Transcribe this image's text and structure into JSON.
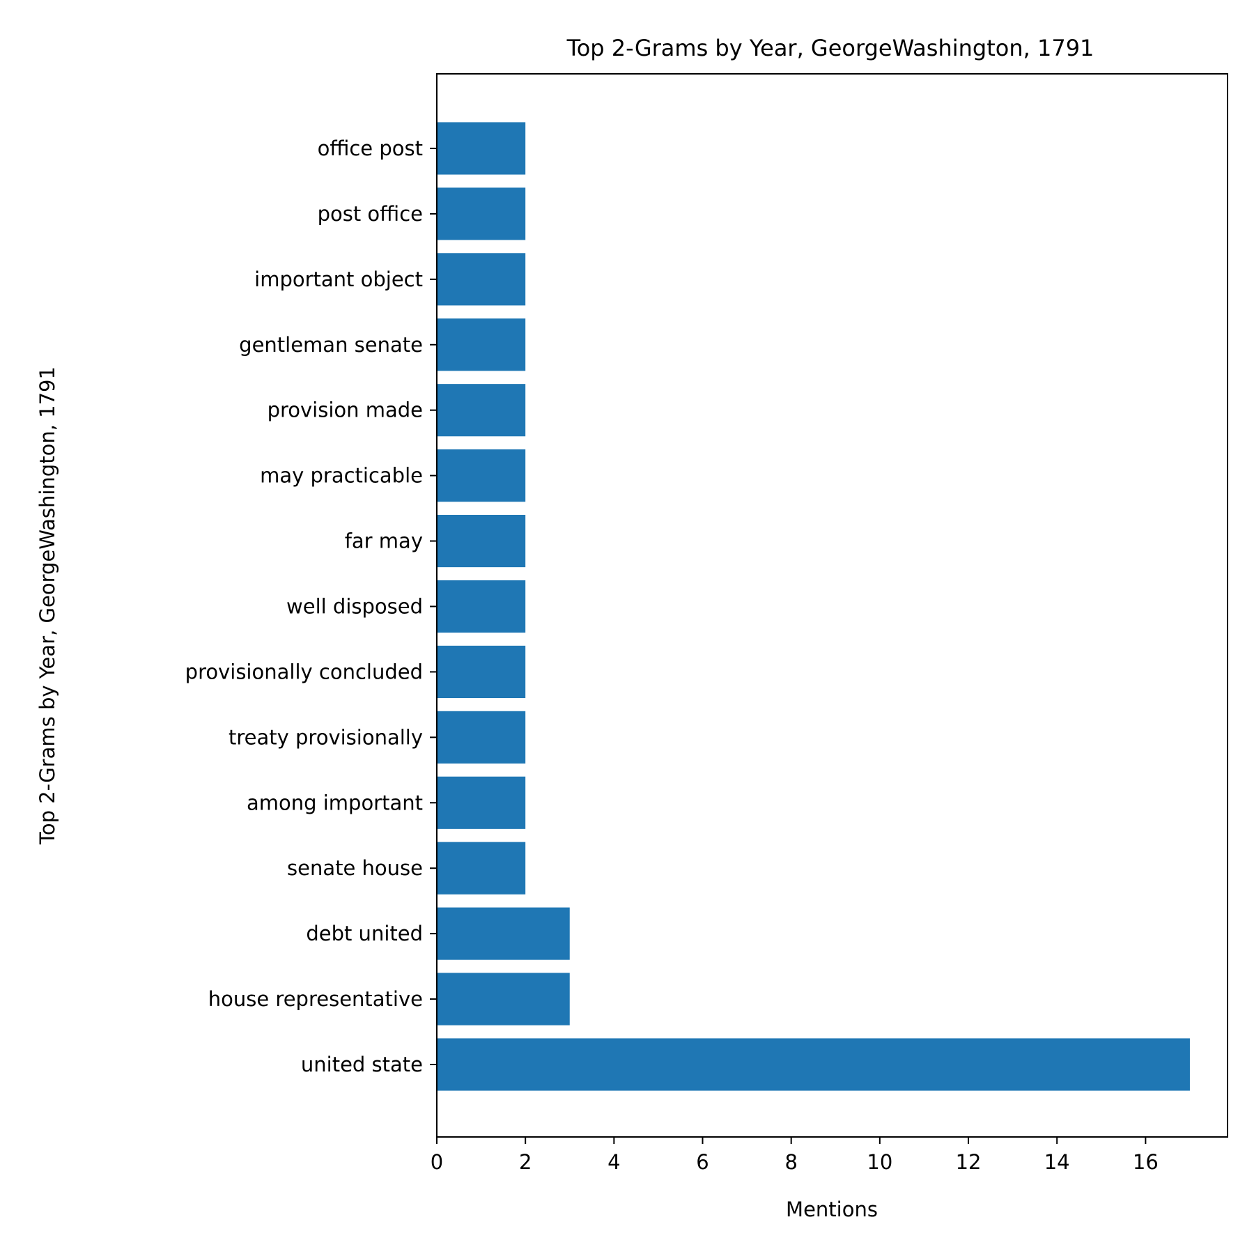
{
  "chart_data": {
    "type": "bar",
    "orientation": "horizontal",
    "title": "Top 2-Grams by Year, GeorgeWashington, 1791",
    "xlabel": "Mentions",
    "ylabel": "Top 2-Grams by Year, GeorgeWashington, 1791",
    "xlim": [
      0,
      17.85
    ],
    "xticks": [
      0,
      2,
      4,
      6,
      8,
      10,
      12,
      14,
      16
    ],
    "grid": false,
    "bar_color": "#1f77b4",
    "categories": [
      "united state",
      "house representative",
      "debt united",
      "senate house",
      "among important",
      "treaty provisionally",
      "provisionally concluded",
      "well disposed",
      "far may",
      "may practicable",
      "provision made",
      "gentleman senate",
      "important object",
      "post office",
      "office post"
    ],
    "values": [
      17,
      3,
      3,
      2,
      2,
      2,
      2,
      2,
      2,
      2,
      2,
      2,
      2,
      2,
      2
    ]
  }
}
